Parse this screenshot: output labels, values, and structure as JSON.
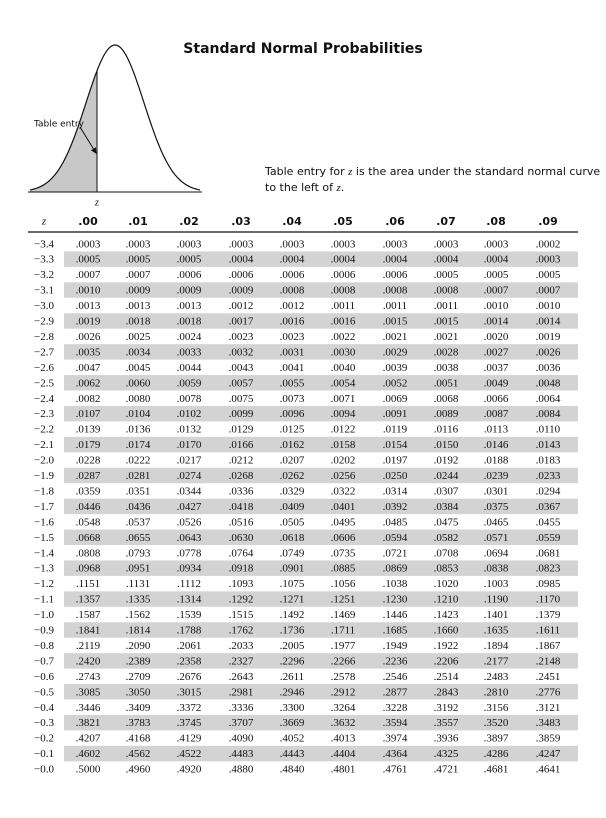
{
  "header": {
    "title": "Standard Normal Probabilities"
  },
  "figure": {
    "entry_label": "Table entry",
    "z_label": "z"
  },
  "caption": [
    "Table entry for ",
    "z",
    " is the area under the standard normal curve",
    "to the left of ",
    "z",
    "."
  ],
  "table": {
    "columns": [
      "z",
      ".00",
      ".01",
      ".02",
      ".03",
      ".04",
      ".05",
      ".06",
      ".07",
      ".08",
      ".09"
    ],
    "rows": [
      [
        "−3.4",
        ".0003",
        ".0003",
        ".0003",
        ".0003",
        ".0003",
        ".0003",
        ".0003",
        ".0003",
        ".0003",
        ".0002"
      ],
      [
        "−3.3",
        ".0005",
        ".0005",
        ".0005",
        ".0004",
        ".0004",
        ".0004",
        ".0004",
        ".0004",
        ".0004",
        ".0003"
      ],
      [
        "−3.2",
        ".0007",
        ".0007",
        ".0006",
        ".0006",
        ".0006",
        ".0006",
        ".0006",
        ".0005",
        ".0005",
        ".0005"
      ],
      [
        "−3.1",
        ".0010",
        ".0009",
        ".0009",
        ".0009",
        ".0008",
        ".0008",
        ".0008",
        ".0008",
        ".0007",
        ".0007"
      ],
      [
        "−3.0",
        ".0013",
        ".0013",
        ".0013",
        ".0012",
        ".0012",
        ".0011",
        ".0011",
        ".0011",
        ".0010",
        ".0010"
      ],
      [
        "−2.9",
        ".0019",
        ".0018",
        ".0018",
        ".0017",
        ".0016",
        ".0016",
        ".0015",
        ".0015",
        ".0014",
        ".0014"
      ],
      [
        "−2.8",
        ".0026",
        ".0025",
        ".0024",
        ".0023",
        ".0023",
        ".0022",
        ".0021",
        ".0021",
        ".0020",
        ".0019"
      ],
      [
        "−2.7",
        ".0035",
        ".0034",
        ".0033",
        ".0032",
        ".0031",
        ".0030",
        ".0029",
        ".0028",
        ".0027",
        ".0026"
      ],
      [
        "−2.6",
        ".0047",
        ".0045",
        ".0044",
        ".0043",
        ".0041",
        ".0040",
        ".0039",
        ".0038",
        ".0037",
        ".0036"
      ],
      [
        "−2.5",
        ".0062",
        ".0060",
        ".0059",
        ".0057",
        ".0055",
        ".0054",
        ".0052",
        ".0051",
        ".0049",
        ".0048"
      ],
      [
        "−2.4",
        ".0082",
        ".0080",
        ".0078",
        ".0075",
        ".0073",
        ".0071",
        ".0069",
        ".0068",
        ".0066",
        ".0064"
      ],
      [
        "−2.3",
        ".0107",
        ".0104",
        ".0102",
        ".0099",
        ".0096",
        ".0094",
        ".0091",
        ".0089",
        ".0087",
        ".0084"
      ],
      [
        "−2.2",
        ".0139",
        ".0136",
        ".0132",
        ".0129",
        ".0125",
        ".0122",
        ".0119",
        ".0116",
        ".0113",
        ".0110"
      ],
      [
        "−2.1",
        ".0179",
        ".0174",
        ".0170",
        ".0166",
        ".0162",
        ".0158",
        ".0154",
        ".0150",
        ".0146",
        ".0143"
      ],
      [
        "−2.0",
        ".0228",
        ".0222",
        ".0217",
        ".0212",
        ".0207",
        ".0202",
        ".0197",
        ".0192",
        ".0188",
        ".0183"
      ],
      [
        "−1.9",
        ".0287",
        ".0281",
        ".0274",
        ".0268",
        ".0262",
        ".0256",
        ".0250",
        ".0244",
        ".0239",
        ".0233"
      ],
      [
        "−1.8",
        ".0359",
        ".0351",
        ".0344",
        ".0336",
        ".0329",
        ".0322",
        ".0314",
        ".0307",
        ".0301",
        ".0294"
      ],
      [
        "−1.7",
        ".0446",
        ".0436",
        ".0427",
        ".0418",
        ".0409",
        ".0401",
        ".0392",
        ".0384",
        ".0375",
        ".0367"
      ],
      [
        "−1.6",
        ".0548",
        ".0537",
        ".0526",
        ".0516",
        ".0505",
        ".0495",
        ".0485",
        ".0475",
        ".0465",
        ".0455"
      ],
      [
        "−1.5",
        ".0668",
        ".0655",
        ".0643",
        ".0630",
        ".0618",
        ".0606",
        ".0594",
        ".0582",
        ".0571",
        ".0559"
      ],
      [
        "−1.4",
        ".0808",
        ".0793",
        ".0778",
        ".0764",
        ".0749",
        ".0735",
        ".0721",
        ".0708",
        ".0694",
        ".0681"
      ],
      [
        "−1.3",
        ".0968",
        ".0951",
        ".0934",
        ".0918",
        ".0901",
        ".0885",
        ".0869",
        ".0853",
        ".0838",
        ".0823"
      ],
      [
        "−1.2",
        ".1151",
        ".1131",
        ".1112",
        ".1093",
        ".1075",
        ".1056",
        ".1038",
        ".1020",
        ".1003",
        ".0985"
      ],
      [
        "−1.1",
        ".1357",
        ".1335",
        ".1314",
        ".1292",
        ".1271",
        ".1251",
        ".1230",
        ".1210",
        ".1190",
        ".1170"
      ],
      [
        "−1.0",
        ".1587",
        ".1562",
        ".1539",
        ".1515",
        ".1492",
        ".1469",
        ".1446",
        ".1423",
        ".1401",
        ".1379"
      ],
      [
        "−0.9",
        ".1841",
        ".1814",
        ".1788",
        ".1762",
        ".1736",
        ".1711",
        ".1685",
        ".1660",
        ".1635",
        ".1611"
      ],
      [
        "−0.8",
        ".2119",
        ".2090",
        ".2061",
        ".2033",
        ".2005",
        ".1977",
        ".1949",
        ".1922",
        ".1894",
        ".1867"
      ],
      [
        "−0.7",
        ".2420",
        ".2389",
        ".2358",
        ".2327",
        ".2296",
        ".2266",
        ".2236",
        ".2206",
        ".2177",
        ".2148"
      ],
      [
        "−0.6",
        ".2743",
        ".2709",
        ".2676",
        ".2643",
        ".2611",
        ".2578",
        ".2546",
        ".2514",
        ".2483",
        ".2451"
      ],
      [
        "−0.5",
        ".3085",
        ".3050",
        ".3015",
        ".2981",
        ".2946",
        ".2912",
        ".2877",
        ".2843",
        ".2810",
        ".2776"
      ],
      [
        "−0.4",
        ".3446",
        ".3409",
        ".3372",
        ".3336",
        ".3300",
        ".3264",
        ".3228",
        ".3192",
        ".3156",
        ".3121"
      ],
      [
        "−0.3",
        ".3821",
        ".3783",
        ".3745",
        ".3707",
        ".3669",
        ".3632",
        ".3594",
        ".3557",
        ".3520",
        ".3483"
      ],
      [
        "−0.2",
        ".4207",
        ".4168",
        ".4129",
        ".4090",
        ".4052",
        ".4013",
        ".3974",
        ".3936",
        ".3897",
        ".3859"
      ],
      [
        "−0.1",
        ".4602",
        ".4562",
        ".4522",
        ".4483",
        ".4443",
        ".4404",
        ".4364",
        ".4325",
        ".4286",
        ".4247"
      ],
      [
        "−0.0",
        ".5000",
        ".4960",
        ".4920",
        ".4880",
        ".4840",
        ".4801",
        ".4761",
        ".4721",
        ".4681",
        ".4641"
      ]
    ]
  }
}
